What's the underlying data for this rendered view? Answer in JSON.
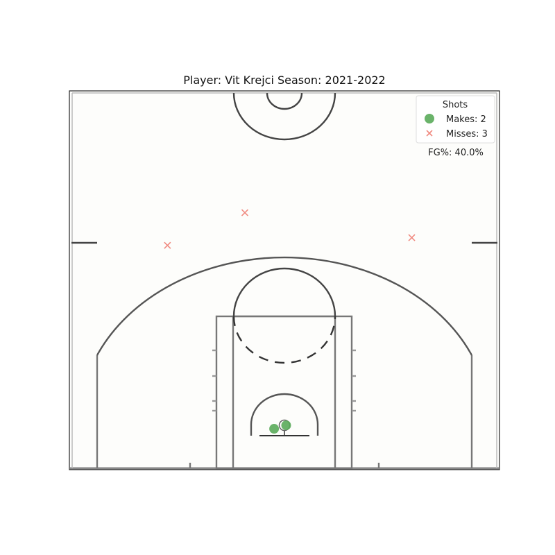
{
  "chart_data": {
    "type": "scatter",
    "title": "Player: Vit Krejci Season: 2021-2022",
    "xlabel": "",
    "ylabel": "",
    "xlim": [
      -250,
      250
    ],
    "ylim": [
      -47.5,
      392.5
    ],
    "grid": false,
    "legend": {
      "title": "Shots",
      "placement": "top-right",
      "entries": [
        {
          "label": "Makes: 2",
          "marker": "circle",
          "color": "#5aab5a"
        },
        {
          "label": "Misses: 3",
          "marker": "x",
          "color": "#f08a80"
        }
      ]
    },
    "annotation": "FG%: 40.0%",
    "series": [
      {
        "name": "Makes: 2",
        "marker": "circle",
        "color": "#5aab5a",
        "points": [
          {
            "x": -12,
            "y": 0
          },
          {
            "x": 2,
            "y": 4
          }
        ]
      },
      {
        "name": "Misses: 3",
        "marker": "x",
        "color": "#f08a80",
        "points": [
          {
            "x": -136,
            "y": 213
          },
          {
            "x": -46,
            "y": 251
          },
          {
            "x": 148,
            "y": 222
          }
        ]
      }
    ]
  }
}
